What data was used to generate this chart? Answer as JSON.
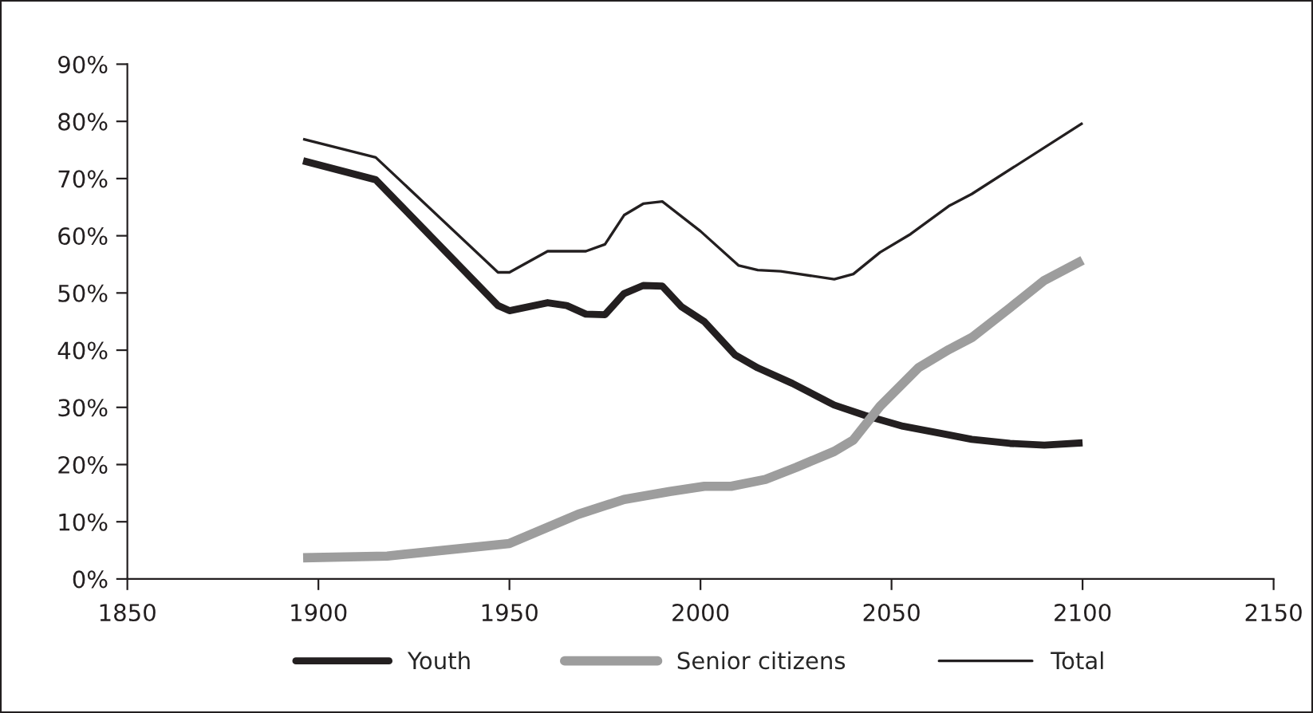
{
  "chart_data": {
    "type": "line",
    "series": [
      {
        "name": "Youth",
        "color": "#231f20",
        "x": [
          1896,
          1915,
          1947,
          1950,
          1960,
          1965,
          1970,
          1975,
          1980,
          1985,
          1990,
          1995,
          2001,
          2009,
          2015,
          2024,
          2035,
          2043,
          2053,
          2064,
          2071,
          2081,
          2090,
          2100
        ],
        "values": [
          73.1,
          69.8,
          47.8,
          46.9,
          48.3,
          47.8,
          46.3,
          46.2,
          49.9,
          51.3,
          51.2,
          47.6,
          45.0,
          39.2,
          36.9,
          34.2,
          30.4,
          28.6,
          26.7,
          25.3,
          24.4,
          23.7,
          23.4,
          23.8
        ]
      },
      {
        "name": "Senior citizens",
        "color": "#9d9d9d",
        "x": [
          1896,
          1918,
          1950,
          1968,
          1980,
          1992,
          2001,
          2008,
          2017,
          2025,
          2035,
          2040,
          2047,
          2057,
          2065,
          2071,
          2081,
          2090,
          2100
        ],
        "values": [
          3.7,
          4.0,
          6.2,
          11.3,
          13.9,
          15.3,
          16.2,
          16.2,
          17.4,
          19.5,
          22.3,
          24.3,
          30.2,
          36.9,
          40.1,
          42.2,
          47.4,
          52.2,
          55.7
        ]
      },
      {
        "name": "Total",
        "color": "#231f20",
        "x": [
          1896,
          1915,
          1947,
          1950,
          1960,
          1970,
          1975,
          1980,
          1985,
          1990,
          2000,
          2010,
          2015,
          2021,
          2035,
          2040,
          2047,
          2055,
          2065,
          2071,
          2100
        ],
        "values": [
          76.9,
          73.7,
          53.6,
          53.6,
          57.3,
          57.3,
          58.5,
          63.6,
          65.6,
          66.0,
          60.8,
          54.8,
          54.0,
          53.8,
          52.4,
          53.3,
          57.1,
          60.3,
          65.2,
          67.3,
          79.7
        ]
      }
    ],
    "xlim": [
      1850,
      2150
    ],
    "xticks": [
      1850,
      1900,
      1950,
      2000,
      2050,
      2100,
      2150
    ],
    "ylim": [
      0,
      90
    ],
    "yticks": [
      {
        "value": 0,
        "label": "0%"
      },
      {
        "value": 10,
        "label": "10%"
      },
      {
        "value": 20,
        "label": "20%"
      },
      {
        "value": 30,
        "label": "30%"
      },
      {
        "value": 40,
        "label": "40%"
      },
      {
        "value": 50,
        "label": "50%"
      },
      {
        "value": 60,
        "label": "60%"
      },
      {
        "value": 70,
        "label": "70%"
      },
      {
        "value": 80,
        "label": "80%"
      },
      {
        "value": 90,
        "label": "90%"
      }
    ],
    "grid": false,
    "legend": "bottom",
    "marker": "none",
    "line_style": "solid"
  }
}
